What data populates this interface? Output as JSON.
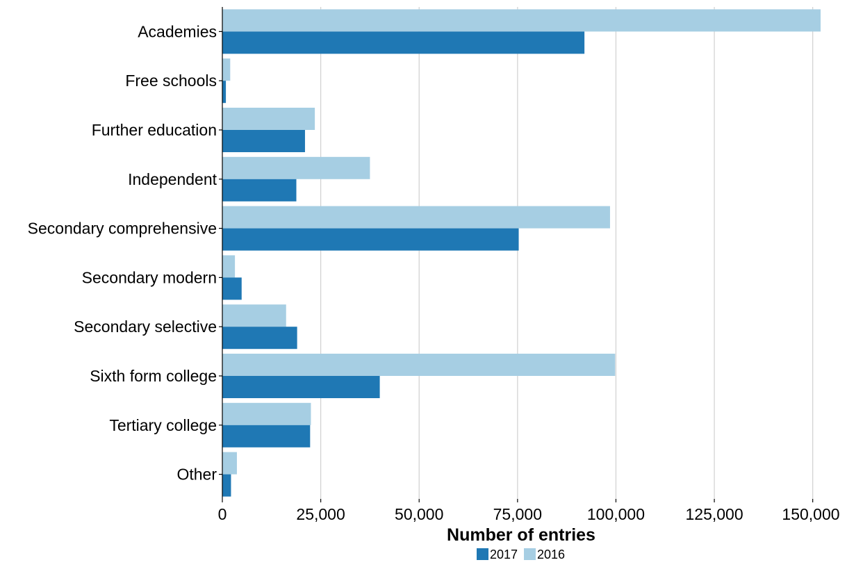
{
  "chart_data": {
    "type": "bar",
    "orientation": "horizontal",
    "categories": [
      "Academies",
      "Free schools",
      "Further education",
      "Independent",
      "Secondary comprehensive",
      "Secondary modern",
      "Secondary selective",
      "Sixth form college",
      "Tertiary college",
      "Other"
    ],
    "series": [
      {
        "name": "2016",
        "color": "#a6cee3",
        "values": [
          152000,
          2000,
          23500,
          37500,
          98500,
          3200,
          16200,
          99800,
          22500,
          3700
        ]
      },
      {
        "name": "2017",
        "color": "#1f78b4",
        "values": [
          92000,
          900,
          21000,
          18800,
          75300,
          4900,
          19000,
          40000,
          22300,
          2200
        ]
      }
    ],
    "xlabel": "Number of entries",
    "ylabel": "",
    "xlim": [
      0,
      152000
    ],
    "x_ticks": [
      0,
      25000,
      50000,
      75000,
      100000,
      125000,
      150000
    ],
    "x_tick_labels": [
      "0",
      "25,000",
      "50,000",
      "75,000",
      "100,000",
      "125,000",
      "150,000"
    ],
    "grid": "vertical",
    "legend": {
      "position": "bottom",
      "items": [
        {
          "label": "2017",
          "color": "#1f78b4"
        },
        {
          "label": "2016",
          "color": "#a6cee3"
        }
      ]
    }
  }
}
